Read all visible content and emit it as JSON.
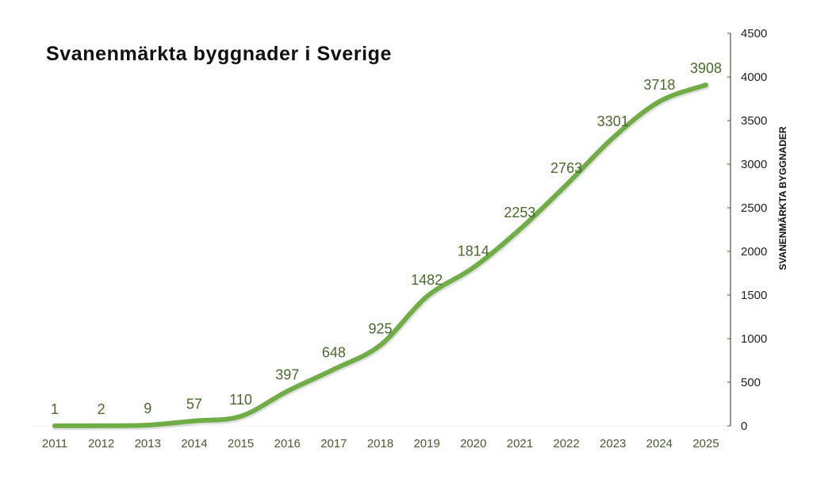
{
  "chart_data": {
    "type": "line",
    "title": "Svanenmärkta byggnader i Sverige",
    "xlabel": "",
    "ylabel": "SVANENMÄRKTA BYGGNADER",
    "categories": [
      "2011",
      "2012",
      "2013",
      "2014",
      "2015",
      "2016",
      "2017",
      "2018",
      "2019",
      "2020",
      "2021",
      "2022",
      "2023",
      "2024",
      "2025"
    ],
    "values": [
      1,
      2,
      9,
      57,
      110,
      397,
      648,
      925,
      1482,
      1814,
      2253,
      2763,
      3301,
      3718,
      3908
    ],
    "ylim": [
      0,
      4500
    ],
    "yticks": [
      0,
      500,
      1000,
      1500,
      2000,
      2500,
      3000,
      3500,
      4000,
      4500
    ],
    "y_axis_position": "right",
    "data_labels": true,
    "grid": false,
    "smooth": true,
    "colors": {
      "line": "#70ad47",
      "labels": "#4a6a2c",
      "axis": "#4a5a32"
    }
  }
}
